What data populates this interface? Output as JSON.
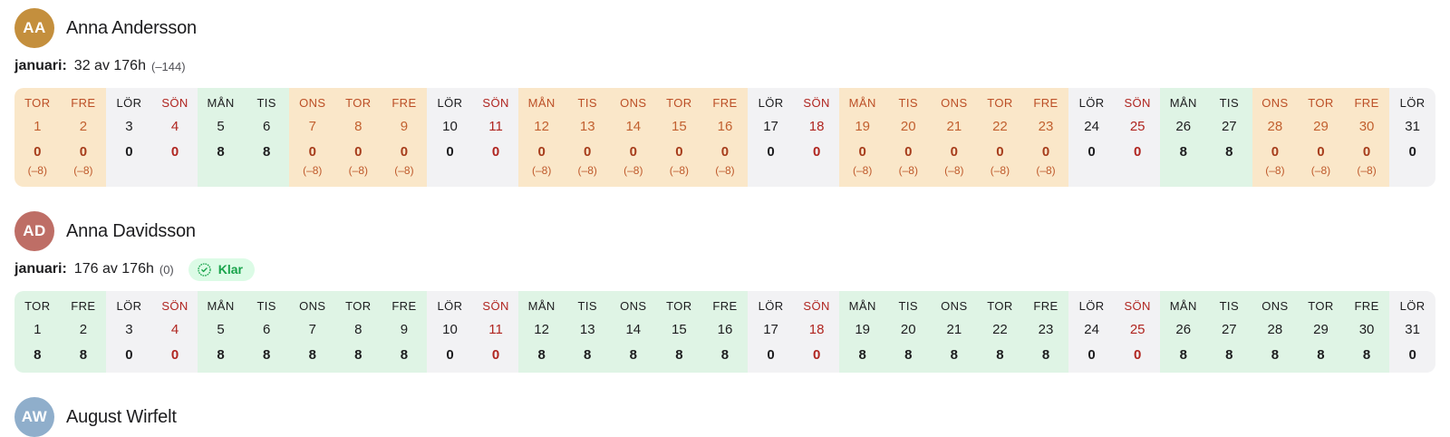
{
  "people": [
    {
      "initials": "AA",
      "name": "Anna Andersson",
      "avatar_color": "#c48f3d",
      "month_label": "januari:",
      "summary": "32 av 176h",
      "delta": "(–144)",
      "badge": null,
      "days": [
        {
          "dow": "TOR",
          "date": "1",
          "hours": "0",
          "diff": "(–8)",
          "state": "missing"
        },
        {
          "dow": "FRE",
          "date": "2",
          "hours": "0",
          "diff": "(–8)",
          "state": "missing"
        },
        {
          "dow": "LÖR",
          "date": "3",
          "hours": "0",
          "state": "sat"
        },
        {
          "dow": "SÖN",
          "date": "4",
          "hours": "0",
          "state": "sun"
        },
        {
          "dow": "MÅN",
          "date": "5",
          "hours": "8",
          "state": "filled"
        },
        {
          "dow": "TIS",
          "date": "6",
          "hours": "8",
          "state": "filled"
        },
        {
          "dow": "ONS",
          "date": "7",
          "hours": "0",
          "diff": "(–8)",
          "state": "missing"
        },
        {
          "dow": "TOR",
          "date": "8",
          "hours": "0",
          "diff": "(–8)",
          "state": "missing"
        },
        {
          "dow": "FRE",
          "date": "9",
          "hours": "0",
          "diff": "(–8)",
          "state": "missing"
        },
        {
          "dow": "LÖR",
          "date": "10",
          "hours": "0",
          "state": "sat"
        },
        {
          "dow": "SÖN",
          "date": "11",
          "hours": "0",
          "state": "sun"
        },
        {
          "dow": "MÅN",
          "date": "12",
          "hours": "0",
          "diff": "(–8)",
          "state": "missing"
        },
        {
          "dow": "TIS",
          "date": "13",
          "hours": "0",
          "diff": "(–8)",
          "state": "missing"
        },
        {
          "dow": "ONS",
          "date": "14",
          "hours": "0",
          "diff": "(–8)",
          "state": "missing"
        },
        {
          "dow": "TOR",
          "date": "15",
          "hours": "0",
          "diff": "(–8)",
          "state": "missing"
        },
        {
          "dow": "FRE",
          "date": "16",
          "hours": "0",
          "diff": "(–8)",
          "state": "missing"
        },
        {
          "dow": "LÖR",
          "date": "17",
          "hours": "0",
          "state": "sat"
        },
        {
          "dow": "SÖN",
          "date": "18",
          "hours": "0",
          "state": "sun"
        },
        {
          "dow": "MÅN",
          "date": "19",
          "hours": "0",
          "diff": "(–8)",
          "state": "missing"
        },
        {
          "dow": "TIS",
          "date": "20",
          "hours": "0",
          "diff": "(–8)",
          "state": "missing"
        },
        {
          "dow": "ONS",
          "date": "21",
          "hours": "0",
          "diff": "(–8)",
          "state": "missing"
        },
        {
          "dow": "TOR",
          "date": "22",
          "hours": "0",
          "diff": "(–8)",
          "state": "missing"
        },
        {
          "dow": "FRE",
          "date": "23",
          "hours": "0",
          "diff": "(–8)",
          "state": "missing"
        },
        {
          "dow": "LÖR",
          "date": "24",
          "hours": "0",
          "state": "sat"
        },
        {
          "dow": "SÖN",
          "date": "25",
          "hours": "0",
          "state": "sun"
        },
        {
          "dow": "MÅN",
          "date": "26",
          "hours": "8",
          "state": "filled"
        },
        {
          "dow": "TIS",
          "date": "27",
          "hours": "8",
          "state": "filled"
        },
        {
          "dow": "ONS",
          "date": "28",
          "hours": "0",
          "diff": "(–8)",
          "state": "missing"
        },
        {
          "dow": "TOR",
          "date": "29",
          "hours": "0",
          "diff": "(–8)",
          "state": "missing"
        },
        {
          "dow": "FRE",
          "date": "30",
          "hours": "0",
          "diff": "(–8)",
          "state": "missing"
        },
        {
          "dow": "LÖR",
          "date": "31",
          "hours": "0",
          "state": "sat"
        }
      ]
    },
    {
      "initials": "AD",
      "name": "Anna Davidsson",
      "avatar_color": "#be6e66",
      "month_label": "januari:",
      "summary": "176 av 176h",
      "delta": "(0)",
      "badge": {
        "label": "Klar",
        "icon": "check-seal-icon",
        "bg": "#dcfbe6",
        "color": "#18a34a"
      },
      "days": [
        {
          "dow": "TOR",
          "date": "1",
          "hours": "8",
          "state": "filled"
        },
        {
          "dow": "FRE",
          "date": "2",
          "hours": "8",
          "state": "filled"
        },
        {
          "dow": "LÖR",
          "date": "3",
          "hours": "0",
          "state": "sat"
        },
        {
          "dow": "SÖN",
          "date": "4",
          "hours": "0",
          "state": "sun"
        },
        {
          "dow": "MÅN",
          "date": "5",
          "hours": "8",
          "state": "filled"
        },
        {
          "dow": "TIS",
          "date": "6",
          "hours": "8",
          "state": "filled"
        },
        {
          "dow": "ONS",
          "date": "7",
          "hours": "8",
          "state": "filled"
        },
        {
          "dow": "TOR",
          "date": "8",
          "hours": "8",
          "state": "filled"
        },
        {
          "dow": "FRE",
          "date": "9",
          "hours": "8",
          "state": "filled"
        },
        {
          "dow": "LÖR",
          "date": "10",
          "hours": "0",
          "state": "sat"
        },
        {
          "dow": "SÖN",
          "date": "11",
          "hours": "0",
          "state": "sun"
        },
        {
          "dow": "MÅN",
          "date": "12",
          "hours": "8",
          "state": "filled"
        },
        {
          "dow": "TIS",
          "date": "13",
          "hours": "8",
          "state": "filled"
        },
        {
          "dow": "ONS",
          "date": "14",
          "hours": "8",
          "state": "filled"
        },
        {
          "dow": "TOR",
          "date": "15",
          "hours": "8",
          "state": "filled"
        },
        {
          "dow": "FRE",
          "date": "16",
          "hours": "8",
          "state": "filled"
        },
        {
          "dow": "LÖR",
          "date": "17",
          "hours": "0",
          "state": "sat"
        },
        {
          "dow": "SÖN",
          "date": "18",
          "hours": "0",
          "state": "sun"
        },
        {
          "dow": "MÅN",
          "date": "19",
          "hours": "8",
          "state": "filled"
        },
        {
          "dow": "TIS",
          "date": "20",
          "hours": "8",
          "state": "filled"
        },
        {
          "dow": "ONS",
          "date": "21",
          "hours": "8",
          "state": "filled"
        },
        {
          "dow": "TOR",
          "date": "22",
          "hours": "8",
          "state": "filled"
        },
        {
          "dow": "FRE",
          "date": "23",
          "hours": "8",
          "state": "filled"
        },
        {
          "dow": "LÖR",
          "date": "24",
          "hours": "0",
          "state": "sat"
        },
        {
          "dow": "SÖN",
          "date": "25",
          "hours": "0",
          "state": "sun"
        },
        {
          "dow": "MÅN",
          "date": "26",
          "hours": "8",
          "state": "filled"
        },
        {
          "dow": "TIS",
          "date": "27",
          "hours": "8",
          "state": "filled"
        },
        {
          "dow": "ONS",
          "date": "28",
          "hours": "8",
          "state": "filled"
        },
        {
          "dow": "TOR",
          "date": "29",
          "hours": "8",
          "state": "filled"
        },
        {
          "dow": "FRE",
          "date": "30",
          "hours": "8",
          "state": "filled"
        },
        {
          "dow": "LÖR",
          "date": "31",
          "hours": "0",
          "state": "sat"
        }
      ]
    },
    {
      "initials": "AW",
      "name": "August Wirfelt",
      "avatar_color": "#8faecb",
      "badge": null
    }
  ]
}
